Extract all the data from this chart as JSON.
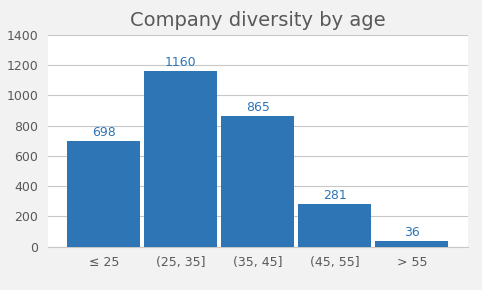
{
  "title": "Company diversity by age",
  "categories": [
    "≤ 25",
    "(25, 35]",
    "(35, 45]",
    "(45, 55]",
    "> 55"
  ],
  "values": [
    698,
    1160,
    865,
    281,
    36
  ],
  "bar_color": "#2e75b6",
  "ylim": [
    0,
    1400
  ],
  "yticks": [
    0,
    200,
    400,
    600,
    800,
    1000,
    1200,
    1400
  ],
  "title_fontsize": 14,
  "tick_fontsize": 9,
  "bar_label_fontsize": 9,
  "bar_label_color": "#2e75b6",
  "background_color": "#f2f2f2",
  "plot_background_color": "#ffffff",
  "grid_color": "#c8c8c8",
  "bar_width": 0.95
}
